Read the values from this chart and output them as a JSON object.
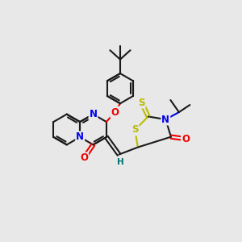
{
  "background_color": "#e8e8e8",
  "bond_color": "#1a1a1a",
  "atom_colors": {
    "N": "#0000ee",
    "O": "#ee0000",
    "S": "#bbbb00",
    "H": "#007070",
    "C": "#1a1a1a"
  },
  "figsize": [
    3.0,
    3.0
  ],
  "dpi": 100,
  "xlim": [
    0,
    10
  ],
  "ylim": [
    0,
    10
  ]
}
